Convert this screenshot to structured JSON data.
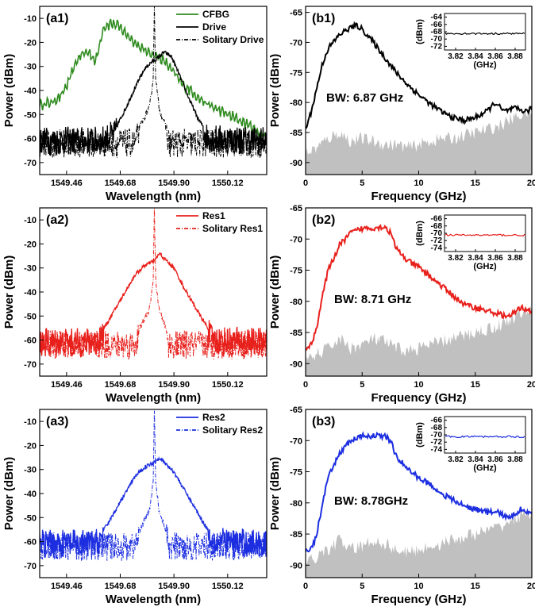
{
  "figure": {
    "panels": [
      {
        "id": "a1",
        "kind": "spectrum",
        "tag": "(a1)",
        "xlabel": "Wavelength (nm)",
        "ylabel": "Power (dBm)",
        "xlim": [
          1549.35,
          1550.28
        ],
        "ylim": [
          -75,
          -5
        ],
        "xticks": [
          1549.46,
          1549.68,
          1549.9,
          1550.12
        ],
        "xticklabels": [
          "1549.46",
          "1549.68",
          "1549.90",
          "1550.12"
        ],
        "yticks": [
          -70,
          -60,
          -50,
          -40,
          -30,
          -20,
          -10
        ],
        "legend": [
          {
            "label": "CFBG",
            "color": "#2e8b1e",
            "dash": "solid"
          },
          {
            "label": "Drive",
            "color": "#000000",
            "dash": "solid"
          },
          {
            "label": "Solitary Drive",
            "color": "#000000",
            "dash": "dashdot"
          }
        ]
      },
      {
        "id": "b1",
        "kind": "rf",
        "tag": "(b1)",
        "xlabel": "Frequency (GHz)",
        "ylabel": "Power (dBm)",
        "xlim": [
          0,
          20
        ],
        "ylim": [
          -92,
          -64
        ],
        "xticks": [
          0,
          5,
          10,
          15,
          20
        ],
        "xticklabels": [
          "0",
          "5",
          "10",
          "15",
          "20"
        ],
        "yticks": [
          -90,
          -85,
          -80,
          -75,
          -70,
          -65
        ],
        "bw_label": "BW: 6.87 GHz",
        "color": "#000000",
        "inset": {
          "ylabel": "(dBm)",
          "xlabel": "(GHz)",
          "yticks": [
            -64,
            -66,
            -68,
            -70,
            -72
          ],
          "ylim": [
            -73,
            -63
          ],
          "xticklabels": [
            "3.82",
            "3.84",
            "3.86",
            "3.88"
          ],
          "level": -68.5
        }
      },
      {
        "id": "a2",
        "kind": "spectrum",
        "tag": "(a2)",
        "xlabel": "Wavelength (nm)",
        "ylabel": "Power (dBm)",
        "xlim": [
          1549.35,
          1550.28
        ],
        "ylim": [
          -75,
          -5
        ],
        "xticks": [
          1549.46,
          1549.68,
          1549.9,
          1550.12
        ],
        "xticklabels": [
          "1549.46",
          "1549.68",
          "1549.90",
          "1550.12"
        ],
        "yticks": [
          -70,
          -60,
          -50,
          -40,
          -30,
          -20,
          -10
        ],
        "legend": [
          {
            "label": "Res1",
            "color": "#e8201c",
            "dash": "solid"
          },
          {
            "label": "Solitary Res1",
            "color": "#e8201c",
            "dash": "dashdot"
          }
        ]
      },
      {
        "id": "b2",
        "kind": "rf",
        "tag": "(b2)",
        "xlabel": "Frequency (GHz)",
        "ylabel": "Power (dBm)",
        "xlim": [
          0,
          20
        ],
        "ylim": [
          -92,
          -65
        ],
        "xticks": [
          0,
          5,
          10,
          15,
          20
        ],
        "xticklabels": [
          "0",
          "5",
          "10",
          "15",
          "20"
        ],
        "yticks": [
          -90,
          -85,
          -80,
          -75,
          -70,
          -65
        ],
        "bw_label": "BW: 8.71 GHz",
        "color": "#e8201c",
        "inset": {
          "ylabel": "(dBm)",
          "xlabel": "(GHz)",
          "yticks": [
            -66,
            -68,
            -70,
            -72,
            -74
          ],
          "ylim": [
            -75,
            -65
          ],
          "xticklabels": [
            "3.82",
            "3.84",
            "3.86",
            "3.88"
          ],
          "level": -70.5
        }
      },
      {
        "id": "a3",
        "kind": "spectrum",
        "tag": "(a3)",
        "xlabel": "Wavelength (nm)",
        "ylabel": "Power (dBm)",
        "xlim": [
          1549.35,
          1550.28
        ],
        "ylim": [
          -75,
          -5
        ],
        "xticks": [
          1549.46,
          1549.68,
          1549.9,
          1550.12
        ],
        "xticklabels": [
          "1549.46",
          "1549.68",
          "1549.90",
          "1550.12"
        ],
        "yticks": [
          -70,
          -60,
          -50,
          -40,
          -30,
          -20,
          -10
        ],
        "legend": [
          {
            "label": "Res2",
            "color": "#1c2ee0",
            "dash": "solid"
          },
          {
            "label": "Solitary Res2",
            "color": "#1c2ee0",
            "dash": "dashdot"
          }
        ]
      },
      {
        "id": "b3",
        "kind": "rf",
        "tag": "(b3)",
        "xlabel": "Frequency (GHz)",
        "ylabel": "Power (dBm)",
        "xlim": [
          0,
          20
        ],
        "ylim": [
          -92,
          -65
        ],
        "xticks": [
          0,
          5,
          10,
          15,
          20
        ],
        "xticklabels": [
          "0",
          "5",
          "10",
          "15",
          "20"
        ],
        "yticks": [
          -90,
          -85,
          -80,
          -75,
          -70,
          -65
        ],
        "bw_label": "BW: 8.78GHz",
        "color": "#1c2ee0",
        "inset": {
          "ylabel": "(dBm)",
          "xlabel": "(GHz)",
          "yticks": [
            -66,
            -68,
            -70,
            -72,
            -74
          ],
          "ylim": [
            -75,
            -65
          ],
          "xticklabels": [
            "3.82",
            "3.84",
            "3.86",
            "3.88"
          ],
          "level": -70.5
        }
      }
    ]
  },
  "chart_data": [
    {
      "type": "line",
      "panel": "a1",
      "xlabel": "Wavelength (nm)",
      "ylabel": "Power (dBm)",
      "xlim": [
        1549.35,
        1550.28
      ],
      "ylim": [
        -75,
        -5
      ],
      "series": [
        {
          "name": "CFBG",
          "color": "#2e8b1e",
          "x": [
            1549.35,
            1549.4,
            1549.44,
            1549.47,
            1549.5,
            1549.52,
            1549.55,
            1549.58,
            1549.61,
            1549.64,
            1549.67,
            1549.7,
            1549.73,
            1549.76,
            1549.79,
            1549.82,
            1549.85,
            1549.88,
            1549.91,
            1549.94,
            1549.97,
            1550.0,
            1550.04,
            1550.08,
            1550.12,
            1550.16,
            1550.2,
            1550.24,
            1550.28
          ],
          "y": [
            -46,
            -45,
            -42,
            -36,
            -28,
            -25,
            -24,
            -28,
            -14,
            -12,
            -13,
            -16,
            -19,
            -22,
            -24,
            -25,
            -27,
            -30,
            -34,
            -38,
            -40,
            -43,
            -46,
            -48,
            -50,
            -52,
            -54,
            -57,
            -60
          ]
        },
        {
          "name": "Drive",
          "color": "#000000",
          "x": [
            1549.35,
            1549.6,
            1549.66,
            1549.7,
            1549.74,
            1549.78,
            1549.81,
            1549.84,
            1549.86,
            1549.89,
            1549.92,
            1549.96,
            1550.0,
            1550.04,
            1550.28
          ],
          "y": [
            -59,
            -59,
            -56,
            -48,
            -39,
            -31,
            -28,
            -26,
            -24,
            -26,
            -33,
            -43,
            -52,
            -58,
            -59
          ]
        },
        {
          "name": "Solitary Drive",
          "color": "#000000",
          "x": [
            1549.35,
            1549.74,
            1549.76,
            1549.78,
            1549.8,
            1549.815,
            1549.82,
            1549.825,
            1549.84,
            1549.86,
            1549.88,
            1550.28
          ],
          "y": [
            -60,
            -60,
            -55,
            -51,
            -47,
            -35,
            -5,
            -35,
            -48,
            -53,
            -60,
            -60
          ]
        }
      ]
    },
    {
      "type": "area",
      "panel": "b1",
      "xlabel": "Frequency (GHz)",
      "ylabel": "Power (dBm)",
      "xlim": [
        0,
        20
      ],
      "ylim": [
        -92,
        -64
      ],
      "series": [
        {
          "name": "",
          "color": "#000000",
          "x": [
            0,
            0.5,
            1,
            1.5,
            2,
            3,
            4,
            4.5,
            5,
            6,
            7,
            8,
            9,
            10,
            11,
            12,
            13,
            14,
            15,
            16,
            16.8,
            17.5,
            18.5,
            19.5,
            20
          ],
          "y": [
            -84.5,
            -81.5,
            -77.5,
            -73.5,
            -71,
            -68.7,
            -67.5,
            -67.2,
            -67.8,
            -70,
            -72.5,
            -75,
            -77,
            -78.7,
            -80.2,
            -81.5,
            -82.5,
            -83,
            -82.5,
            -81.5,
            -80,
            -81.5,
            -81,
            -81.5,
            -81
          ]
        },
        {
          "name": "",
          "color": "#c0c0c0",
          "x": [
            0,
            1,
            2,
            3,
            4,
            5,
            6,
            7,
            8,
            9,
            10,
            11,
            12,
            13,
            14,
            15,
            16,
            17,
            18,
            19,
            20
          ],
          "y": [
            -88.5,
            -87.5,
            -86,
            -85,
            -86.5,
            -86,
            -86.5,
            -87,
            -87,
            -87.5,
            -87,
            -86.5,
            -86,
            -86,
            -85.5,
            -85,
            -84.5,
            -84,
            -83,
            -82,
            -81.5
          ]
        }
      ]
    },
    {
      "type": "line",
      "panel": "a2",
      "xlabel": "Wavelength (nm)",
      "ylabel": "Power (dBm)",
      "xlim": [
        1549.35,
        1550.28
      ],
      "ylim": [
        -75,
        -5
      ],
      "series": [
        {
          "name": "Res1",
          "color": "#e8201c",
          "x": [
            1549.35,
            1549.58,
            1549.62,
            1549.66,
            1549.7,
            1549.74,
            1549.78,
            1549.8,
            1549.82,
            1549.84,
            1549.86,
            1549.88,
            1549.9,
            1549.94,
            1549.98,
            1550.02,
            1550.06,
            1550.28
          ],
          "y": [
            -59,
            -59,
            -54,
            -47,
            -40,
            -33,
            -29,
            -28,
            -27,
            -24,
            -26,
            -28,
            -30,
            -38,
            -45,
            -52,
            -58,
            -59
          ]
        },
        {
          "name": "Solitary Res1",
          "color": "#e8201c",
          "x": [
            1549.35,
            1549.74,
            1549.76,
            1549.78,
            1549.8,
            1549.815,
            1549.82,
            1549.825,
            1549.84,
            1549.86,
            1549.88,
            1550.28
          ],
          "y": [
            -60,
            -60,
            -55,
            -51,
            -47,
            -35,
            -5,
            -35,
            -48,
            -53,
            -60,
            -60
          ]
        }
      ]
    },
    {
      "type": "area",
      "panel": "b2",
      "xlabel": "Frequency (GHz)",
      "ylabel": "Power (dBm)",
      "xlim": [
        0,
        20
      ],
      "ylim": [
        -92,
        -65
      ],
      "series": [
        {
          "name": "",
          "color": "#e8201c",
          "x": [
            0,
            0.5,
            1,
            1.5,
            2,
            3,
            4,
            5,
            6,
            7,
            7.5,
            8,
            9,
            10,
            11,
            12,
            13,
            14,
            15,
            16,
            17,
            18,
            19,
            20
          ],
          "y": [
            -87.5,
            -87,
            -84,
            -79,
            -75,
            -71,
            -69,
            -68.3,
            -68.2,
            -68,
            -69,
            -71.5,
            -73.5,
            -74.5,
            -76,
            -77.5,
            -79,
            -80.5,
            -81,
            -81.5,
            -82,
            -82.5,
            -81,
            -81.5
          ]
        },
        {
          "name": "",
          "color": "#c0c0c0",
          "x": [
            0,
            1,
            2,
            3,
            4,
            5,
            6,
            7,
            8,
            9,
            10,
            11,
            12,
            13,
            14,
            15,
            16,
            17,
            18,
            19,
            20
          ],
          "y": [
            -90,
            -88.5,
            -87.5,
            -86,
            -87.5,
            -87,
            -86,
            -86.5,
            -87.5,
            -88,
            -87.5,
            -87,
            -86.5,
            -86,
            -85.5,
            -85,
            -84.5,
            -84,
            -83,
            -82,
            -81.5
          ]
        }
      ]
    },
    {
      "type": "line",
      "panel": "a3",
      "xlabel": "Wavelength (nm)",
      "ylabel": "Power (dBm)",
      "xlim": [
        1549.35,
        1550.28
      ],
      "ylim": [
        -75,
        -5
      ],
      "series": [
        {
          "name": "Res2",
          "color": "#1c2ee0",
          "x": [
            1549.35,
            1549.58,
            1549.62,
            1549.66,
            1549.7,
            1549.74,
            1549.78,
            1549.8,
            1549.82,
            1549.84,
            1549.86,
            1549.88,
            1549.9,
            1549.94,
            1549.98,
            1550.02,
            1550.06,
            1550.28
          ],
          "y": [
            -59,
            -59,
            -54,
            -47,
            -40,
            -33,
            -29,
            -28,
            -27,
            -25,
            -27,
            -29,
            -31,
            -38,
            -45,
            -52,
            -58,
            -59
          ]
        },
        {
          "name": "Solitary Res2",
          "color": "#1c2ee0",
          "x": [
            1549.35,
            1549.74,
            1549.76,
            1549.78,
            1549.8,
            1549.815,
            1549.82,
            1549.825,
            1549.84,
            1549.86,
            1549.88,
            1550.28
          ],
          "y": [
            -60,
            -60,
            -55,
            -51,
            -47,
            -35,
            -5,
            -35,
            -48,
            -53,
            -60,
            -60
          ]
        }
      ]
    },
    {
      "type": "area",
      "panel": "b3",
      "xlabel": "Frequency (GHz)",
      "ylabel": "Power (dBm)",
      "xlim": [
        0,
        20
      ],
      "ylim": [
        -92,
        -65
      ],
      "series": [
        {
          "name": "",
          "color": "#1c2ee0",
          "x": [
            0,
            0.5,
            1,
            1.5,
            2,
            3,
            4,
            5,
            6,
            7,
            7.5,
            8,
            9,
            10,
            11,
            12,
            13,
            14,
            15,
            16,
            17,
            18,
            19,
            20
          ],
          "y": [
            -87.5,
            -87.5,
            -85,
            -80,
            -76,
            -72,
            -70,
            -69.3,
            -69.2,
            -69.3,
            -70,
            -72.5,
            -74.5,
            -76,
            -77,
            -78.5,
            -79.5,
            -80.5,
            -81,
            -81.5,
            -81.5,
            -82.5,
            -81,
            -81.5
          ]
        },
        {
          "name": "",
          "color": "#c0c0c0",
          "x": [
            0,
            1,
            2,
            3,
            4,
            5,
            6,
            7,
            8,
            9,
            10,
            11,
            12,
            13,
            14,
            15,
            16,
            17,
            18,
            19,
            20
          ],
          "y": [
            -90,
            -88.5,
            -87.5,
            -86,
            -87.5,
            -87,
            -86,
            -86.5,
            -87.5,
            -88,
            -87.5,
            -87,
            -86.5,
            -86,
            -85.5,
            -85,
            -84.5,
            -84,
            -83,
            -82,
            -81.5
          ]
        }
      ]
    }
  ]
}
